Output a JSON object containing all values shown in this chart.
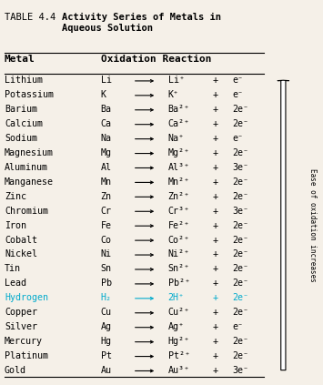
{
  "title_label": "TABLE 4.4",
  "title_text": "Activity Series of Metals in\nAqueous Solution",
  "col1_header": "Metal",
  "col2_header": "Oxidation Reaction",
  "rows": [
    [
      "Lithium",
      "Li",
      "Li⁺",
      "+",
      "e⁻",
      false
    ],
    [
      "Potassium",
      "K",
      "K⁺",
      "+",
      "e⁻",
      false
    ],
    [
      "Barium",
      "Ba",
      "Ba²⁺",
      "+",
      "2e⁻",
      false
    ],
    [
      "Calcium",
      "Ca",
      "Ca²⁺",
      "+",
      "2e⁻",
      false
    ],
    [
      "Sodium",
      "Na",
      "Na⁺",
      "+",
      "e⁻",
      false
    ],
    [
      "Magnesium",
      "Mg",
      "Mg²⁺",
      "+",
      "2e⁻",
      false
    ],
    [
      "Aluminum",
      "Al",
      "Al³⁺",
      "+",
      "3e⁻",
      false
    ],
    [
      "Manganese",
      "Mn",
      "Mn²⁺",
      "+",
      "2e⁻",
      false
    ],
    [
      "Zinc",
      "Zn",
      "Zn²⁺",
      "+",
      "2e⁻",
      false
    ],
    [
      "Chromium",
      "Cr",
      "Cr³⁺",
      "+",
      "3e⁻",
      false
    ],
    [
      "Iron",
      "Fe",
      "Fe²⁺",
      "+",
      "2e⁻",
      false
    ],
    [
      "Cobalt",
      "Co",
      "Co²⁺",
      "+",
      "2e⁻",
      false
    ],
    [
      "Nickel",
      "Ni",
      "Ni²⁺",
      "+",
      "2e⁻",
      false
    ],
    [
      "Tin",
      "Sn",
      "Sn²⁺",
      "+",
      "2e⁻",
      false
    ],
    [
      "Lead",
      "Pb",
      "Pb²⁺",
      "+",
      "2e⁻",
      false
    ],
    [
      "Hydrogen",
      "H₂",
      "2H⁺",
      "+",
      "2e⁻",
      true
    ],
    [
      "Copper",
      "Cu",
      "Cu²⁺",
      "+",
      "2e⁻",
      false
    ],
    [
      "Silver",
      "Ag",
      "Ag⁺",
      "+",
      "e⁻",
      false
    ],
    [
      "Mercury",
      "Hg",
      "Hg²⁺",
      "+",
      "2e⁻",
      false
    ],
    [
      "Platinum",
      "Pt",
      "Pt²⁺",
      "+",
      "2e⁻",
      false
    ],
    [
      "Gold",
      "Au",
      "Au³⁺",
      "+",
      "3e⁻",
      false
    ]
  ],
  "highlight_color": "#00AACC",
  "arrow_label": "Ease of oxidation increases",
  "bg_color": "#f5f0e8",
  "header_color": "#000000",
  "text_color": "#000000"
}
